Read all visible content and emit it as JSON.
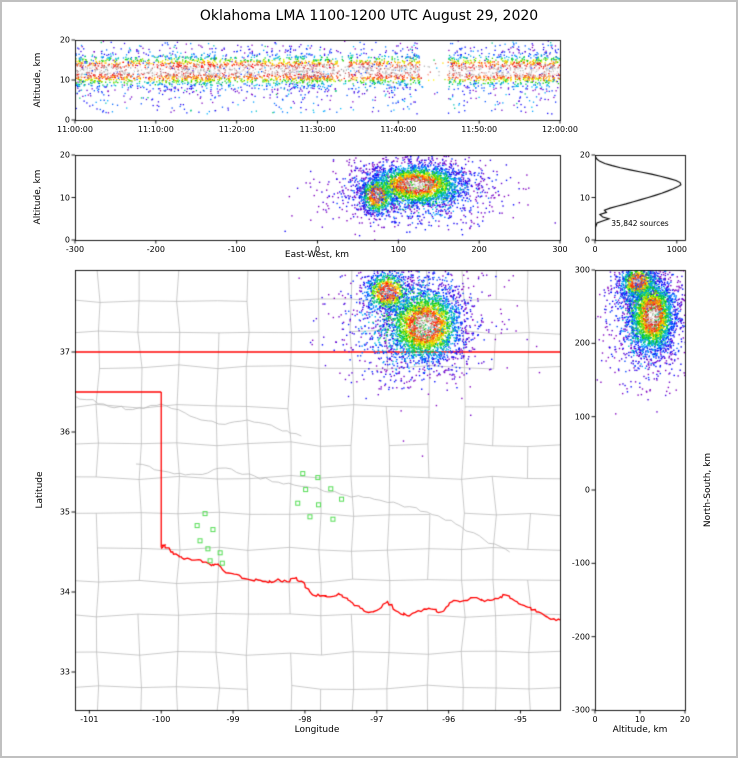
{
  "title": "Oklahoma LMA 1100-1200 UTC August 29, 2020",
  "style": {
    "background": "#ffffff",
    "frame_color": "#c0c0c0",
    "axis_color": "#000000",
    "county_color": "#b3b3b3",
    "river_color": "#b3b3b3",
    "state_border_color": "#ff0000",
    "station_color": "#55dd55",
    "histogram_line_color": "#000000",
    "density_colormap": [
      {
        "t": 0.0,
        "color": "#9600b4"
      },
      {
        "t": 0.14,
        "color": "#0000ff"
      },
      {
        "t": 0.3,
        "color": "#00beff"
      },
      {
        "t": 0.46,
        "color": "#00c800"
      },
      {
        "t": 0.6,
        "color": "#ffff00"
      },
      {
        "t": 0.7,
        "color": "#ff8c00"
      },
      {
        "t": 0.8,
        "color": "#ff0000"
      },
      {
        "t": 0.9,
        "color": "#a5a5a5"
      },
      {
        "t": 1.0,
        "color": "#ffffff"
      }
    ]
  },
  "chart_data": [
    {
      "id": "time_height",
      "type": "scatter",
      "xlabel": "",
      "ylabel": "Altitude, km",
      "xlim": [
        0,
        3600
      ],
      "ylim": [
        0,
        20
      ],
      "xticks": [
        {
          "v": 0,
          "label": "11:00:00"
        },
        {
          "v": 600,
          "label": "11:10:00"
        },
        {
          "v": 1200,
          "label": "11:20:00"
        },
        {
          "v": 1800,
          "label": "11:30:00"
        },
        {
          "v": 2400,
          "label": "11:40:00"
        },
        {
          "v": 3000,
          "label": "11:50:00"
        },
        {
          "v": 3600,
          "label": "12:00:00"
        }
      ],
      "yticks": [
        0,
        10,
        20
      ],
      "band": {
        "n": 7500,
        "seed": 11,
        "alt_mean": 12.3,
        "alt_sd": 2.25,
        "band_fraction": 0.88,
        "scatter_alt_range": [
          1.5,
          19.5
        ],
        "gaps": [
          {
            "t0": 2560,
            "t1": 2770,
            "keep": 0.06
          },
          {
            "t0": 1900,
            "t1": 2030,
            "keep": 0.45
          }
        ]
      }
    },
    {
      "id": "east_west",
      "type": "scatter",
      "xlabel": "East-West, km",
      "ylabel": "Altitude, km",
      "xlim": [
        -300,
        300
      ],
      "ylim": [
        0,
        20
      ],
      "xticks": [
        -300,
        -200,
        -100,
        0,
        100,
        200,
        300
      ],
      "yticks": [
        0,
        10,
        20
      ],
      "clusters": {
        "n": 4300,
        "seed": 21,
        "components": [
          {
            "cx": 122,
            "cy": 13,
            "sx": 30,
            "sy": 2.5,
            "w": 0.58,
            "ts": 1.0
          },
          {
            "cx": 74,
            "cy": 10.5,
            "sx": 11,
            "sy": 2.4,
            "w": 0.17,
            "ts": 0.95
          },
          {
            "cx": 118,
            "cy": 11.5,
            "sx": 52,
            "sy": 4.2,
            "w": 0.25,
            "ts": 0.5
          }
        ]
      }
    },
    {
      "id": "alt_histogram",
      "type": "line",
      "xlabel": "",
      "ylabel": "",
      "xlim": [
        0,
        1100
      ],
      "ylim": [
        0,
        20
      ],
      "xticks": [
        0,
        1000
      ],
      "yticks": [
        0,
        10,
        20
      ],
      "annotation": "35,842 sources",
      "profile": [
        [
          0,
          0
        ],
        [
          2,
          0
        ],
        [
          3,
          6
        ],
        [
          4,
          25
        ],
        [
          4.6,
          110
        ],
        [
          5,
          170
        ],
        [
          5.4,
          95
        ],
        [
          6,
          60
        ],
        [
          6.5,
          140
        ],
        [
          7,
          115
        ],
        [
          7.5,
          185
        ],
        [
          8,
          280
        ],
        [
          8.5,
          380
        ],
        [
          9,
          470
        ],
        [
          9.5,
          560
        ],
        [
          10,
          650
        ],
        [
          10.5,
          735
        ],
        [
          11,
          815
        ],
        [
          11.5,
          885
        ],
        [
          12,
          950
        ],
        [
          12.5,
          1010
        ],
        [
          13,
          1050
        ],
        [
          13.5,
          1040
        ],
        [
          14,
          990
        ],
        [
          14.5,
          900
        ],
        [
          15,
          800
        ],
        [
          15.5,
          690
        ],
        [
          16,
          560
        ],
        [
          16.5,
          430
        ],
        [
          17,
          310
        ],
        [
          17.5,
          210
        ],
        [
          18,
          120
        ],
        [
          18.5,
          60
        ],
        [
          19,
          25
        ],
        [
          19.5,
          8
        ],
        [
          20,
          0
        ]
      ]
    },
    {
      "id": "plan_view",
      "type": "map-scatter",
      "xlabel": "Longitude",
      "ylabel": "Latitude",
      "xlim": [
        -101.2,
        -94.45
      ],
      "ylim": [
        32.525,
        38.025
      ],
      "xticks": [
        -101,
        -100,
        -99,
        -98,
        -97,
        -96,
        -95
      ],
      "yticks": [
        33,
        34,
        35,
        36,
        37
      ],
      "clusters": {
        "n": 4600,
        "seed": 31,
        "components": [
          {
            "cx": -96.33,
            "cy": 37.33,
            "sx": 0.27,
            "sy": 0.24,
            "w": 0.55,
            "ts": 1.0
          },
          {
            "cx": -96.85,
            "cy": 37.75,
            "sx": 0.17,
            "sy": 0.14,
            "w": 0.18,
            "ts": 0.92
          },
          {
            "cx": -96.5,
            "cy": 37.4,
            "sx": 0.5,
            "sy": 0.42,
            "w": 0.27,
            "ts": 0.5
          }
        ]
      },
      "stations": [
        [
          -98.03,
          35.48
        ],
        [
          -97.82,
          35.43
        ],
        [
          -97.99,
          35.28
        ],
        [
          -97.64,
          35.29
        ],
        [
          -98.1,
          35.11
        ],
        [
          -97.81,
          35.09
        ],
        [
          -97.49,
          35.16
        ],
        [
          -97.93,
          34.94
        ],
        [
          -97.61,
          34.91
        ],
        [
          -99.39,
          34.98
        ],
        [
          -99.5,
          34.83
        ],
        [
          -99.28,
          34.78
        ],
        [
          -99.46,
          34.64
        ],
        [
          -99.35,
          34.54
        ],
        [
          -99.18,
          34.49
        ],
        [
          -99.32,
          34.39
        ],
        [
          -99.15,
          34.36
        ]
      ],
      "state_border": {
        "north_lat": 37.0,
        "panhandle_lat": 36.5,
        "panhandle_corner_lon": -100.0,
        "west_corner_lat": 34.56,
        "red_river": [
          [
            -100.0,
            34.56
          ],
          [
            -99.95,
            34.58
          ],
          [
            -99.84,
            34.5
          ],
          [
            -99.72,
            34.44
          ],
          [
            -99.6,
            34.41
          ],
          [
            -99.45,
            34.4
          ],
          [
            -99.3,
            34.33
          ],
          [
            -99.21,
            34.35
          ],
          [
            -99.1,
            34.24
          ],
          [
            -98.95,
            34.22
          ],
          [
            -98.8,
            34.16
          ],
          [
            -98.65,
            34.15
          ],
          [
            -98.5,
            34.12
          ],
          [
            -98.38,
            34.16
          ],
          [
            -98.25,
            34.13
          ],
          [
            -98.12,
            34.18
          ],
          [
            -98.0,
            34.09
          ],
          [
            -97.9,
            33.97
          ],
          [
            -97.78,
            33.95
          ],
          [
            -97.65,
            33.94
          ],
          [
            -97.52,
            33.97
          ],
          [
            -97.4,
            33.9
          ],
          [
            -97.28,
            33.83
          ],
          [
            -97.15,
            33.75
          ],
          [
            -97.0,
            33.77
          ],
          [
            -96.85,
            33.88
          ],
          [
            -96.7,
            33.75
          ],
          [
            -96.55,
            33.7
          ],
          [
            -96.4,
            33.76
          ],
          [
            -96.25,
            33.79
          ],
          [
            -96.1,
            33.75
          ],
          [
            -95.95,
            33.88
          ],
          [
            -95.8,
            33.89
          ],
          [
            -95.65,
            33.93
          ],
          [
            -95.5,
            33.88
          ],
          [
            -95.35,
            33.92
          ],
          [
            -95.2,
            33.96
          ],
          [
            -95.05,
            33.88
          ],
          [
            -94.9,
            33.81
          ],
          [
            -94.75,
            33.75
          ],
          [
            -94.6,
            33.67
          ],
          [
            -94.45,
            33.65
          ]
        ]
      },
      "rivers": [
        [
          [
            -100.35,
            35.6
          ],
          [
            -99.9,
            35.5
          ],
          [
            -99.5,
            35.47
          ],
          [
            -99.1,
            35.55
          ],
          [
            -98.7,
            35.45
          ],
          [
            -98.3,
            35.35
          ],
          [
            -97.9,
            35.3
          ],
          [
            -97.5,
            35.22
          ],
          [
            -97.1,
            35.18
          ],
          [
            -96.7,
            35.1
          ],
          [
            -96.3,
            35.0
          ],
          [
            -95.9,
            34.85
          ],
          [
            -95.5,
            34.65
          ],
          [
            -95.15,
            34.5
          ]
        ],
        [
          [
            -101.2,
            36.45
          ],
          [
            -100.8,
            36.35
          ],
          [
            -100.4,
            36.28
          ],
          [
            -100.0,
            36.35
          ],
          [
            -99.6,
            36.2
          ],
          [
            -99.2,
            36.1
          ],
          [
            -98.8,
            36.15
          ],
          [
            -98.4,
            36.05
          ],
          [
            -98.05,
            35.95
          ]
        ]
      ],
      "county_grid": {
        "seed": 99,
        "col_min": 0.42,
        "col_max": 0.62,
        "row_min": 0.36,
        "row_max": 0.5,
        "jitter": 0.03,
        "merge_p": 0.08
      }
    },
    {
      "id": "north_south",
      "type": "scatter",
      "xlabel": "Altitude, km",
      "ylabel": "North-South, km",
      "xlim": [
        0,
        20
      ],
      "ylim": [
        -300,
        300
      ],
      "xticks": [
        0,
        10,
        20
      ],
      "yticks": [
        -300,
        -200,
        -100,
        0,
        100,
        200,
        300
      ],
      "clusters": {
        "n": 4300,
        "seed": 41,
        "components": [
          {
            "cx": 12.8,
            "cy": 238,
            "sx": 2.6,
            "sy": 26,
            "w": 0.55,
            "ts": 1.0
          },
          {
            "cx": 9.5,
            "cy": 283,
            "sx": 2.2,
            "sy": 13,
            "w": 0.18,
            "ts": 0.9
          },
          {
            "cx": 11.5,
            "cy": 240,
            "sx": 4.6,
            "sy": 46,
            "w": 0.27,
            "ts": 0.5
          }
        ]
      }
    }
  ]
}
